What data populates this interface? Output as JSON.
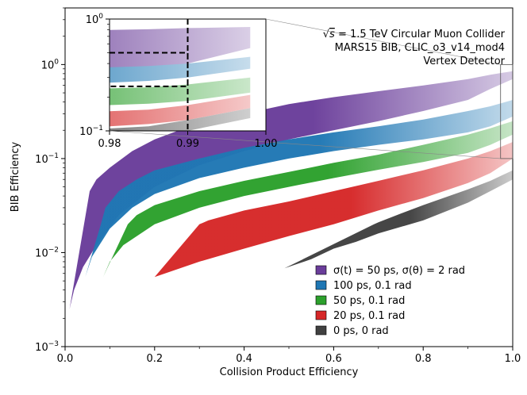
{
  "chart_data": {
    "type": "area",
    "xlabel": "Collision Product Efficiency",
    "ylabel": "BIB Efficiency",
    "xlim": [
      0.0,
      1.0
    ],
    "ylim": [
      0.001,
      4.0
    ],
    "yscale": "log",
    "x_ticks": [
      0.0,
      0.2,
      0.4,
      0.6,
      0.8,
      1.0
    ],
    "x_tick_labels": [
      "0.0",
      "0.2",
      "0.4",
      "0.6",
      "0.8",
      "1.0"
    ],
    "y_ticks": [
      0.001,
      0.01,
      0.1,
      1
    ],
    "y_tick_labels": [
      "10^-3",
      "10^-2",
      "10^-1",
      "10^0"
    ],
    "annotation": {
      "line1": "1.5 TeV Circular Muon Collider",
      "sqrt_symbol": "√",
      "sqrt_var": "s",
      "eq": " = ",
      "line2": "MARS15 BIB, CLIC_o3_v14_mod4",
      "line3": "Vertex Detector"
    },
    "legend": {
      "placement": "lower-right",
      "entries": [
        {
          "label": "σ(t) = 50 ps, σ(θ) = 2 rad",
          "color": "#6a3d9a"
        },
        {
          "label": "100 ps, 0.1 rad",
          "color": "#1f77b4"
        },
        {
          "label": "50 ps, 0.1 rad",
          "color": "#2ca02c"
        },
        {
          "label": "20 ps, 0.1 rad",
          "color": "#d62728"
        },
        {
          "label": "0 ps, 0 rad",
          "color": "#404040"
        }
      ]
    },
    "series": [
      {
        "name": "σ(t) = 50 ps, σ(θ) = 2 rad",
        "color": "#6a3d9a",
        "lower": {
          "x": [
            0.01,
            0.02,
            0.04,
            0.07,
            0.12,
            0.2,
            0.3,
            0.4,
            0.5,
            0.6,
            0.7,
            0.8,
            0.9,
            0.95,
            1.0
          ],
          "y": [
            0.0025,
            0.004,
            0.007,
            0.012,
            0.025,
            0.05,
            0.085,
            0.12,
            0.16,
            0.2,
            0.25,
            0.32,
            0.42,
            0.55,
            0.7
          ]
        },
        "upper": {
          "x": [
            0.055,
            0.07,
            0.1,
            0.15,
            0.2,
            0.3,
            0.4,
            0.5,
            0.6,
            0.7,
            0.8,
            0.9,
            0.95,
            1.0
          ],
          "y": [
            0.045,
            0.06,
            0.08,
            0.12,
            0.16,
            0.24,
            0.3,
            0.38,
            0.45,
            0.52,
            0.6,
            0.7,
            0.78,
            0.85
          ]
        }
      },
      {
        "name": "100 ps, 0.1 rad",
        "color": "#1f77b4",
        "lower": {
          "x": [
            0.045,
            0.06,
            0.1,
            0.15,
            0.2,
            0.3,
            0.4,
            0.5,
            0.6,
            0.7,
            0.8,
            0.9,
            0.95,
            1.0
          ],
          "y": [
            0.0055,
            0.009,
            0.018,
            0.03,
            0.042,
            0.062,
            0.08,
            0.1,
            0.12,
            0.14,
            0.16,
            0.19,
            0.22,
            0.28
          ]
        },
        "upper": {
          "x": [
            0.08,
            0.09,
            0.12,
            0.16,
            0.2,
            0.3,
            0.4,
            0.5,
            0.6,
            0.7,
            0.8,
            0.9,
            0.95,
            1.0
          ],
          "y": [
            0.02,
            0.03,
            0.045,
            0.06,
            0.075,
            0.1,
            0.13,
            0.16,
            0.19,
            0.22,
            0.26,
            0.32,
            0.36,
            0.42
          ]
        }
      },
      {
        "name": "50 ps, 0.1 rad",
        "color": "#2ca02c",
        "lower": {
          "x": [
            0.085,
            0.1,
            0.13,
            0.2,
            0.3,
            0.4,
            0.5,
            0.6,
            0.7,
            0.8,
            0.9,
            0.95,
            1.0
          ],
          "y": [
            0.0055,
            0.008,
            0.012,
            0.02,
            0.03,
            0.04,
            0.05,
            0.062,
            0.076,
            0.092,
            0.115,
            0.14,
            0.18
          ]
        },
        "upper": {
          "x": [
            0.14,
            0.16,
            0.2,
            0.3,
            0.4,
            0.5,
            0.6,
            0.7,
            0.8,
            0.9,
            0.95,
            1.0
          ],
          "y": [
            0.02,
            0.025,
            0.032,
            0.045,
            0.058,
            0.072,
            0.09,
            0.11,
            0.14,
            0.18,
            0.21,
            0.25
          ]
        }
      },
      {
        "name": "20 ps, 0.1 rad",
        "color": "#d62728",
        "lower": {
          "x": [
            0.2,
            0.3,
            0.4,
            0.5,
            0.6,
            0.7,
            0.8,
            0.9,
            0.95,
            1.0
          ],
          "y": [
            0.0055,
            0.008,
            0.011,
            0.015,
            0.02,
            0.028,
            0.038,
            0.055,
            0.07,
            0.1
          ]
        },
        "upper": {
          "x": [
            0.3,
            0.32,
            0.4,
            0.5,
            0.6,
            0.7,
            0.8,
            0.9,
            0.95,
            1.0
          ],
          "y": [
            0.02,
            0.022,
            0.028,
            0.035,
            0.045,
            0.058,
            0.075,
            0.1,
            0.12,
            0.15
          ]
        }
      },
      {
        "name": "0 ps, 0 rad",
        "color": "#404040",
        "lower": {
          "x": [
            0.49,
            0.55,
            0.6,
            0.65,
            0.7,
            0.8,
            0.9,
            0.95,
            1.0
          ],
          "y": [
            0.0068,
            0.0085,
            0.011,
            0.013,
            0.016,
            0.022,
            0.034,
            0.045,
            0.06
          ]
        },
        "upper": {
          "x": [
            0.69,
            0.7,
            0.75,
            0.8,
            0.9,
            0.95,
            1.0
          ],
          "y": [
            0.02,
            0.021,
            0.026,
            0.032,
            0.047,
            0.058,
            0.075
          ]
        }
      }
    ],
    "inset": {
      "xlim": [
        0.98,
        1.0
      ],
      "ylim": [
        0.1,
        1.0
      ],
      "yscale": "log",
      "x_ticks": [
        0.98,
        0.99,
        1.0
      ],
      "x_tick_labels": [
        "0.98",
        "0.99",
        "1.00"
      ],
      "y_ticks": [
        0.1,
        1.0
      ],
      "y_tick_labels": [
        "10^-1",
        "10^0"
      ],
      "reference_x": 0.99,
      "reference_y": 0.25,
      "zoom_region": {
        "x": [
          0.98,
          1.0
        ],
        "y": [
          0.1,
          1.0
        ]
      },
      "bands": [
        {
          "color": "#6a3d9a",
          "lower": [
            0.32,
            0.35,
            0.4,
            0.55
          ],
          "upper": [
            0.8,
            0.81,
            0.83,
            0.85
          ]
        },
        {
          "color": "#1f77b4",
          "lower": [
            0.27,
            0.28,
            0.3,
            0.36
          ],
          "upper": [
            0.37,
            0.38,
            0.4,
            0.46
          ]
        },
        {
          "color": "#2ca02c",
          "lower": [
            0.17,
            0.175,
            0.185,
            0.22
          ],
          "upper": [
            0.24,
            0.245,
            0.26,
            0.3
          ]
        },
        {
          "color": "#d62728",
          "lower": [
            0.11,
            0.115,
            0.125,
            0.16
          ],
          "upper": [
            0.15,
            0.155,
            0.17,
            0.21
          ]
        },
        {
          "color": "#404040",
          "lower": [
            0.085,
            0.09,
            0.1,
            0.13
          ],
          "upper": [
            0.105,
            0.11,
            0.125,
            0.16
          ]
        }
      ],
      "band_x": [
        0.98,
        0.985,
        0.99,
        0.998
      ]
    }
  }
}
